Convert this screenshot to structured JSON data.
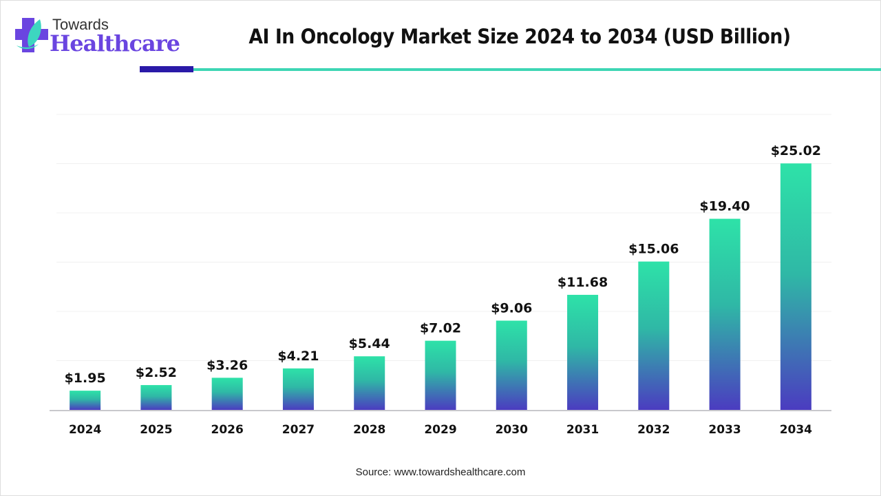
{
  "logo": {
    "line1": "Towards",
    "line2": "Healthcare"
  },
  "title": "AI In Oncology Market Size 2024 to 2034 (USD Billion)",
  "source": "Source: www.towardshealthcare.com",
  "colors": {
    "bar_top": "#2ee2a8",
    "bar_bottom": "#4b3cc0",
    "accent_dark": "#2a1aa8",
    "accent_teal": "#3dd6b4"
  },
  "chart_data": {
    "type": "bar",
    "title": "AI In Oncology Market Size 2024 to 2034 (USD Billion)",
    "categories": [
      "2024",
      "2025",
      "2026",
      "2027",
      "2028",
      "2029",
      "2030",
      "2031",
      "2032",
      "2033",
      "2034"
    ],
    "values": [
      1.95,
      2.52,
      3.26,
      4.21,
      5.44,
      7.02,
      9.06,
      11.68,
      15.06,
      19.4,
      25.02
    ],
    "data_labels": [
      "$1.95",
      "$2.52",
      "$3.26",
      "$4.21",
      "$5.44",
      "$7.02",
      "$9.06",
      "$11.68",
      "$15.06",
      "$19.40",
      "$25.02"
    ],
    "xlabel": "",
    "ylabel": "",
    "ylim": [
      0,
      30
    ],
    "grid": true,
    "y_axis_visible": false
  }
}
